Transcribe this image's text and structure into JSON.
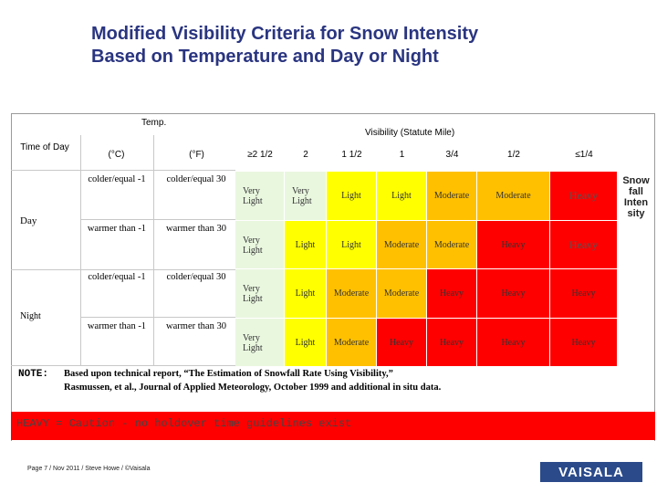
{
  "title": {
    "line1": "Modified Visibility Criteria for Snow Intensity",
    "line2": "Based on Temperature and Day or Night"
  },
  "header": {
    "temp": "Temp.",
    "visibility": "Visibility (Statute Mile)",
    "time_of_day": "Time of Day",
    "celsius": "(°C)",
    "fahrenheit": "(°F)",
    "vis_cols": [
      "≥2 1/2",
      "2",
      "1 1/2",
      "1",
      "3/4",
      "1/2",
      "≤1/4"
    ]
  },
  "row_groups": [
    {
      "label": "Day"
    },
    {
      "label": "Night"
    }
  ],
  "rows": [
    {
      "c": "colder/equal -1",
      "f": "colder/equal 30",
      "vals": [
        "Very Light",
        "Very Light",
        "Light",
        "Light",
        "Moderate",
        "Moderate",
        "Heavy"
      ]
    },
    {
      "c": "warmer than -1",
      "f": "warmer than 30",
      "vals": [
        "Very Light",
        "Light",
        "Light",
        "Moderate",
        "Moderate",
        "Heavy",
        "Heavy"
      ]
    },
    {
      "c": "colder/equal -1",
      "f": "colder/equal 30",
      "vals": [
        "Very Light",
        "Light",
        "Moderate",
        "Moderate",
        "Heavy",
        "Heavy",
        "Heavy"
      ]
    },
    {
      "c": "warmer than -1",
      "f": "warmer than 30",
      "vals": [
        "Very Light",
        "Light",
        "Moderate",
        "Heavy",
        "Heavy",
        "Heavy",
        "Heavy"
      ]
    }
  ],
  "side_label": "Snow fall Inten sity",
  "note": {
    "label": "NOTE:",
    "line1": "Based upon technical report, “The Estimation of Snowfall Rate Using Visibility,”",
    "line2": "Rasmussen, et al., Journal of Applied Meteorology, October 1999 and additional in situ data."
  },
  "caution": "HEAVY = Caution -  no holdover time guidelines  exist",
  "footer": {
    "page_text": "Page 7 / Nov 2011 / Steve Howe / ©Vaisala",
    "logo": "VAISALA"
  },
  "colors": {
    "very_light": "#e9f7df",
    "light": "#ffff00",
    "moderate": "#ffc000",
    "heavy": "#ff0000",
    "title": "#2a3580",
    "logo": "#2a4a8a"
  }
}
